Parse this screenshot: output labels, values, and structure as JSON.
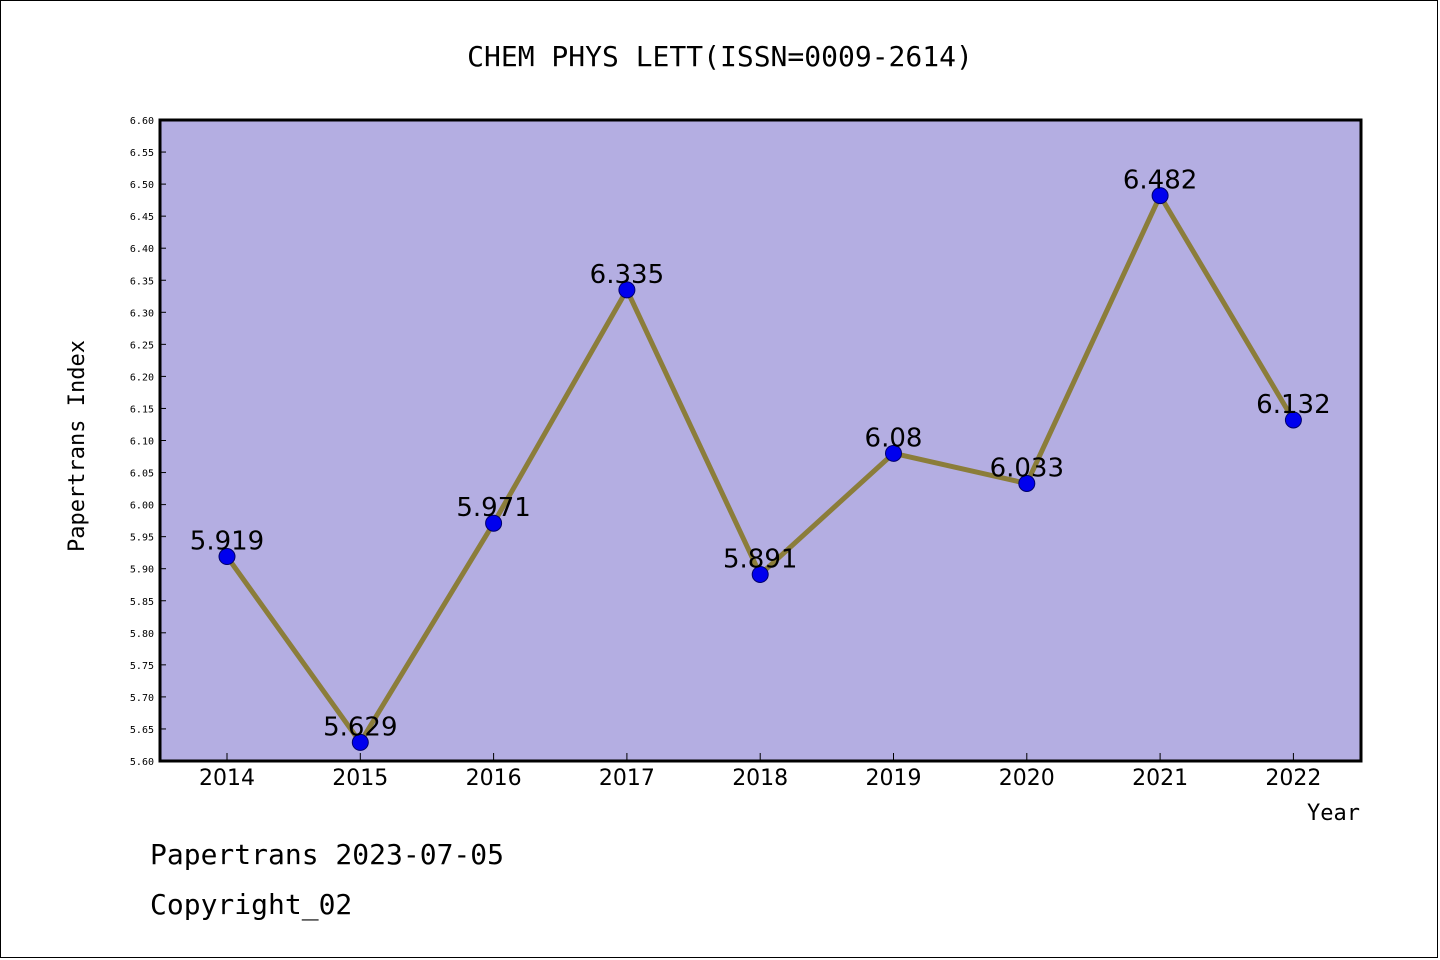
{
  "chart_data": {
    "type": "line",
    "title": "CHEM PHYS LETT(ISSN=0009-2614)",
    "xlabel": "Year",
    "ylabel": "Papertrans Index",
    "categories": [
      "2014",
      "2015",
      "2016",
      "2017",
      "2018",
      "2019",
      "2020",
      "2021",
      "2022"
    ],
    "values": [
      5.919,
      5.629,
      5.971,
      6.335,
      5.891,
      6.08,
      6.033,
      6.482,
      6.132
    ],
    "value_labels": [
      "5.919",
      "5.629",
      "5.971",
      "6.335",
      "5.891",
      "6.08",
      "6.033",
      "6.482",
      "6.132"
    ],
    "ylim": [
      5.6,
      6.6
    ],
    "yticks": [
      "5.60",
      "5.65",
      "5.70",
      "5.75",
      "5.80",
      "5.85",
      "5.90",
      "5.95",
      "6.00",
      "6.05",
      "6.10",
      "6.15",
      "6.20",
      "6.25",
      "6.30",
      "6.35",
      "6.40",
      "6.45",
      "6.50",
      "6.55",
      "6.60"
    ],
    "grid": false,
    "colors": {
      "plot_background": "#b4aee2",
      "line": "#8b7d3a",
      "marker": "#0000ee"
    }
  },
  "footer": {
    "date_line": "Papertrans 2023-07-05",
    "copyright": "Copyright_02"
  }
}
